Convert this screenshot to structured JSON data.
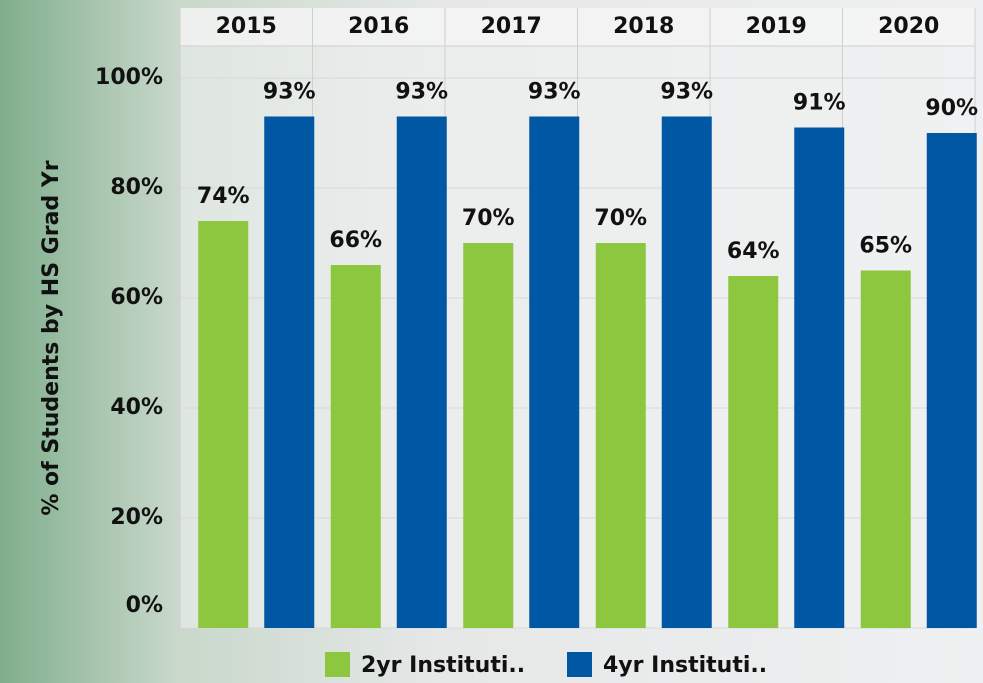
{
  "chart_data": {
    "type": "bar",
    "y_axis_label": "% of Students by HS Grad Yr",
    "categories": [
      "2015",
      "2016",
      "2017",
      "2018",
      "2019",
      "2020"
    ],
    "series": [
      {
        "name": "2yr Instituti..",
        "color": "#8dc63f",
        "values": [
          74,
          66,
          70,
          70,
          64,
          65
        ],
        "value_labels": [
          "74%",
          "66%",
          "70%",
          "70%",
          "64%",
          "65%"
        ]
      },
      {
        "name": "4yr Instituti..",
        "color": "#0057a3",
        "values": [
          93,
          93,
          93,
          93,
          91,
          90
        ],
        "value_labels": [
          "93%",
          "93%",
          "93%",
          "93%",
          "91%",
          "90%"
        ]
      }
    ],
    "ylim": [
      0,
      100
    ],
    "yticks": [
      {
        "value": 0,
        "label": "0%"
      },
      {
        "value": 20,
        "label": "20%"
      },
      {
        "value": 40,
        "label": "40%"
      },
      {
        "value": 60,
        "label": "60%"
      },
      {
        "value": 80,
        "label": "80%"
      },
      {
        "value": 100,
        "label": "100%"
      }
    ],
    "grid": true
  }
}
